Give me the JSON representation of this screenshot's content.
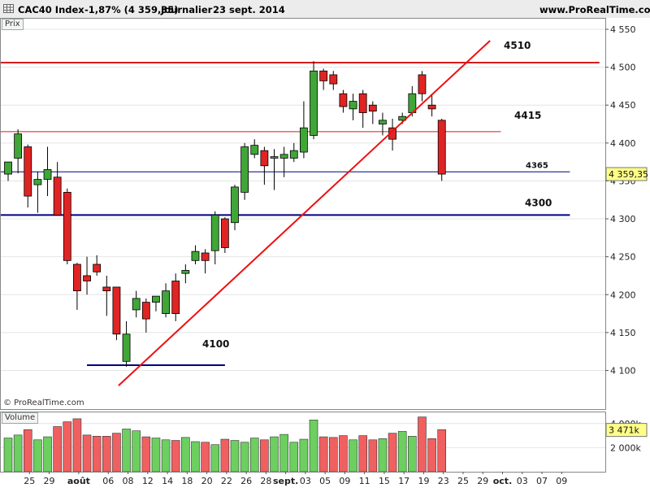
{
  "header": {
    "instrument": "CAC40 Index",
    "change": "-1,87% (4 359,35)",
    "period": "Journalier",
    "date": "23 sept. 2014",
    "website": "www.ProRealTime.com"
  },
  "price_panel": {
    "label": "Prix"
  },
  "volume_panel": {
    "label": "Volume"
  },
  "copyright": "© ProRealTime.com",
  "colors": {
    "up": "#3fa637",
    "down": "#e02424",
    "resistance": "#d41c1c",
    "support": "#000080",
    "trendline": "#ee1111",
    "last_price_tag": "#ffff88"
  },
  "chart_data": [
    {
      "type": "candlestick",
      "title": "CAC40 Index",
      "ylim": [
        4075,
        4560
      ],
      "yticks": [
        4100,
        4150,
        4200,
        4250,
        4300,
        4350,
        4400,
        4450,
        4500,
        4550
      ],
      "ytick_labels": [
        "4 100",
        "4 150",
        "4 200",
        "4 250",
        "4 300",
        "4 350",
        "4 400",
        "4 450",
        "4 500",
        "4 550"
      ],
      "x_labels": [
        "25",
        "29",
        "août",
        "06",
        "08",
        "12",
        "14",
        "18",
        "20",
        "22",
        "26",
        "28",
        "sept.",
        "03",
        "05",
        "09",
        "11",
        "15",
        "17",
        "19",
        "23",
        "25",
        "29",
        "oct.",
        "03",
        "07",
        "09"
      ],
      "x_label_slots": [
        2,
        4,
        7,
        10,
        12,
        14,
        16,
        18,
        20,
        22,
        24,
        26,
        28,
        30,
        32,
        34,
        36,
        38,
        40,
        42,
        44,
        46,
        48,
        50,
        52,
        54,
        56
      ],
      "candles": [
        {
          "o": 4359,
          "h": 4375,
          "l": 4350,
          "c": 4375
        },
        {
          "o": 4380,
          "h": 4418,
          "l": 4360,
          "c": 4412
        },
        {
          "o": 4395,
          "h": 4398,
          "l": 4315,
          "c": 4330
        },
        {
          "o": 4345,
          "h": 4362,
          "l": 4308,
          "c": 4352
        },
        {
          "o": 4352,
          "h": 4395,
          "l": 4330,
          "c": 4365
        },
        {
          "o": 4355,
          "h": 4375,
          "l": 4305,
          "c": 4305
        },
        {
          "o": 4335,
          "h": 4340,
          "l": 4240,
          "c": 4245
        },
        {
          "o": 4240,
          "h": 4242,
          "l": 4180,
          "c": 4205
        },
        {
          "o": 4225,
          "h": 4250,
          "l": 4200,
          "c": 4218
        },
        {
          "o": 4240,
          "h": 4252,
          "l": 4225,
          "c": 4230
        },
        {
          "o": 4210,
          "h": 4225,
          "l": 4172,
          "c": 4205
        },
        {
          "o": 4210,
          "h": 4210,
          "l": 4140,
          "c": 4148
        },
        {
          "o": 4112,
          "h": 4165,
          "l": 4105,
          "c": 4148
        },
        {
          "o": 4180,
          "h": 4205,
          "l": 4170,
          "c": 4195
        },
        {
          "o": 4190,
          "h": 4195,
          "l": 4150,
          "c": 4168
        },
        {
          "o": 4190,
          "h": 4198,
          "l": 4178,
          "c": 4198
        },
        {
          "o": 4175,
          "h": 4215,
          "l": 4170,
          "c": 4205
        },
        {
          "o": 4218,
          "h": 4228,
          "l": 4165,
          "c": 4175
        },
        {
          "o": 4228,
          "h": 4240,
          "l": 4215,
          "c": 4232
        },
        {
          "o": 4245,
          "h": 4265,
          "l": 4240,
          "c": 4257
        },
        {
          "o": 4255,
          "h": 4260,
          "l": 4228,
          "c": 4245
        },
        {
          "o": 4258,
          "h": 4310,
          "l": 4240,
          "c": 4305
        },
        {
          "o": 4300,
          "h": 4302,
          "l": 4255,
          "c": 4262
        },
        {
          "o": 4295,
          "h": 4345,
          "l": 4285,
          "c": 4342
        },
        {
          "o": 4335,
          "h": 4400,
          "l": 4325,
          "c": 4395
        },
        {
          "o": 4385,
          "h": 4405,
          "l": 4380,
          "c": 4397
        },
        {
          "o": 4390,
          "h": 4395,
          "l": 4345,
          "c": 4370
        },
        {
          "o": 4380,
          "h": 4392,
          "l": 4338,
          "c": 4382
        },
        {
          "o": 4380,
          "h": 4395,
          "l": 4355,
          "c": 4385
        },
        {
          "o": 4380,
          "h": 4400,
          "l": 4375,
          "c": 4390
        },
        {
          "o": 4388,
          "h": 4455,
          "l": 4380,
          "c": 4420
        },
        {
          "o": 4410,
          "h": 4508,
          "l": 4405,
          "c": 4495
        },
        {
          "o": 4495,
          "h": 4498,
          "l": 4470,
          "c": 4482
        },
        {
          "o": 4490,
          "h": 4495,
          "l": 4470,
          "c": 4478
        },
        {
          "o": 4465,
          "h": 4470,
          "l": 4440,
          "c": 4448
        },
        {
          "o": 4445,
          "h": 4465,
          "l": 4430,
          "c": 4455
        },
        {
          "o": 4465,
          "h": 4470,
          "l": 4420,
          "c": 4440
        },
        {
          "o": 4450,
          "h": 4455,
          "l": 4425,
          "c": 4442
        },
        {
          "o": 4425,
          "h": 4440,
          "l": 4410,
          "c": 4430
        },
        {
          "o": 4420,
          "h": 4432,
          "l": 4390,
          "c": 4405
        },
        {
          "o": 4430,
          "h": 4440,
          "l": 4425,
          "c": 4435
        },
        {
          "o": 4440,
          "h": 4475,
          "l": 4435,
          "c": 4465
        },
        {
          "o": 4490,
          "h": 4495,
          "l": 4455,
          "c": 4465
        },
        {
          "o": 4450,
          "h": 4465,
          "l": 4435,
          "c": 4445
        },
        {
          "o": 4430,
          "h": 4432,
          "l": 4350,
          "c": 4359
        }
      ],
      "horizontal_lines": [
        {
          "label": "4510",
          "value": 4506,
          "color": "#d41c1c",
          "width": 2,
          "x_end_slot": 60
        },
        {
          "label": "4415",
          "value": 4415,
          "color": "#d41c1c",
          "width": 1,
          "x_end_slot": 50
        },
        {
          "label": "4365",
          "value": 4362,
          "color": "#000080",
          "width": 1,
          "x_end_slot": 57
        },
        {
          "label": "4300",
          "value": 4305,
          "color": "#000080",
          "width": 2,
          "x_end_slot": 57
        },
        {
          "label": "4100",
          "value": 4107,
          "color": "#000080",
          "width": 2,
          "x_start_slot": 8,
          "x_end_slot": 22
        }
      ],
      "trendline": {
        "slot_start": 11.2,
        "value_start": 4080,
        "slot_end": 48.9,
        "value_end": 4535
      },
      "last_price": "4 359,35"
    },
    {
      "type": "bar",
      "title": "Volume",
      "ylim": [
        0,
        5000
      ],
      "yticks": [
        2000,
        4000
      ],
      "ytick_labels": [
        "2 000k",
        "4 000k"
      ],
      "values": [
        2800,
        3050,
        3500,
        2650,
        2900,
        3750,
        4150,
        4400,
        3050,
        2950,
        2950,
        3200,
        3550,
        3400,
        2900,
        2800,
        2650,
        2600,
        2850,
        2500,
        2450,
        2250,
        2700,
        2600,
        2450,
        2800,
        2650,
        2900,
        3100,
        2450,
        2700,
        4300,
        2900,
        2850,
        3000,
        2650,
        3000,
        2650,
        2750,
        3200,
        3350,
        2950,
        4550,
        2750,
        3500
      ],
      "last_value": "3 471k"
    }
  ]
}
